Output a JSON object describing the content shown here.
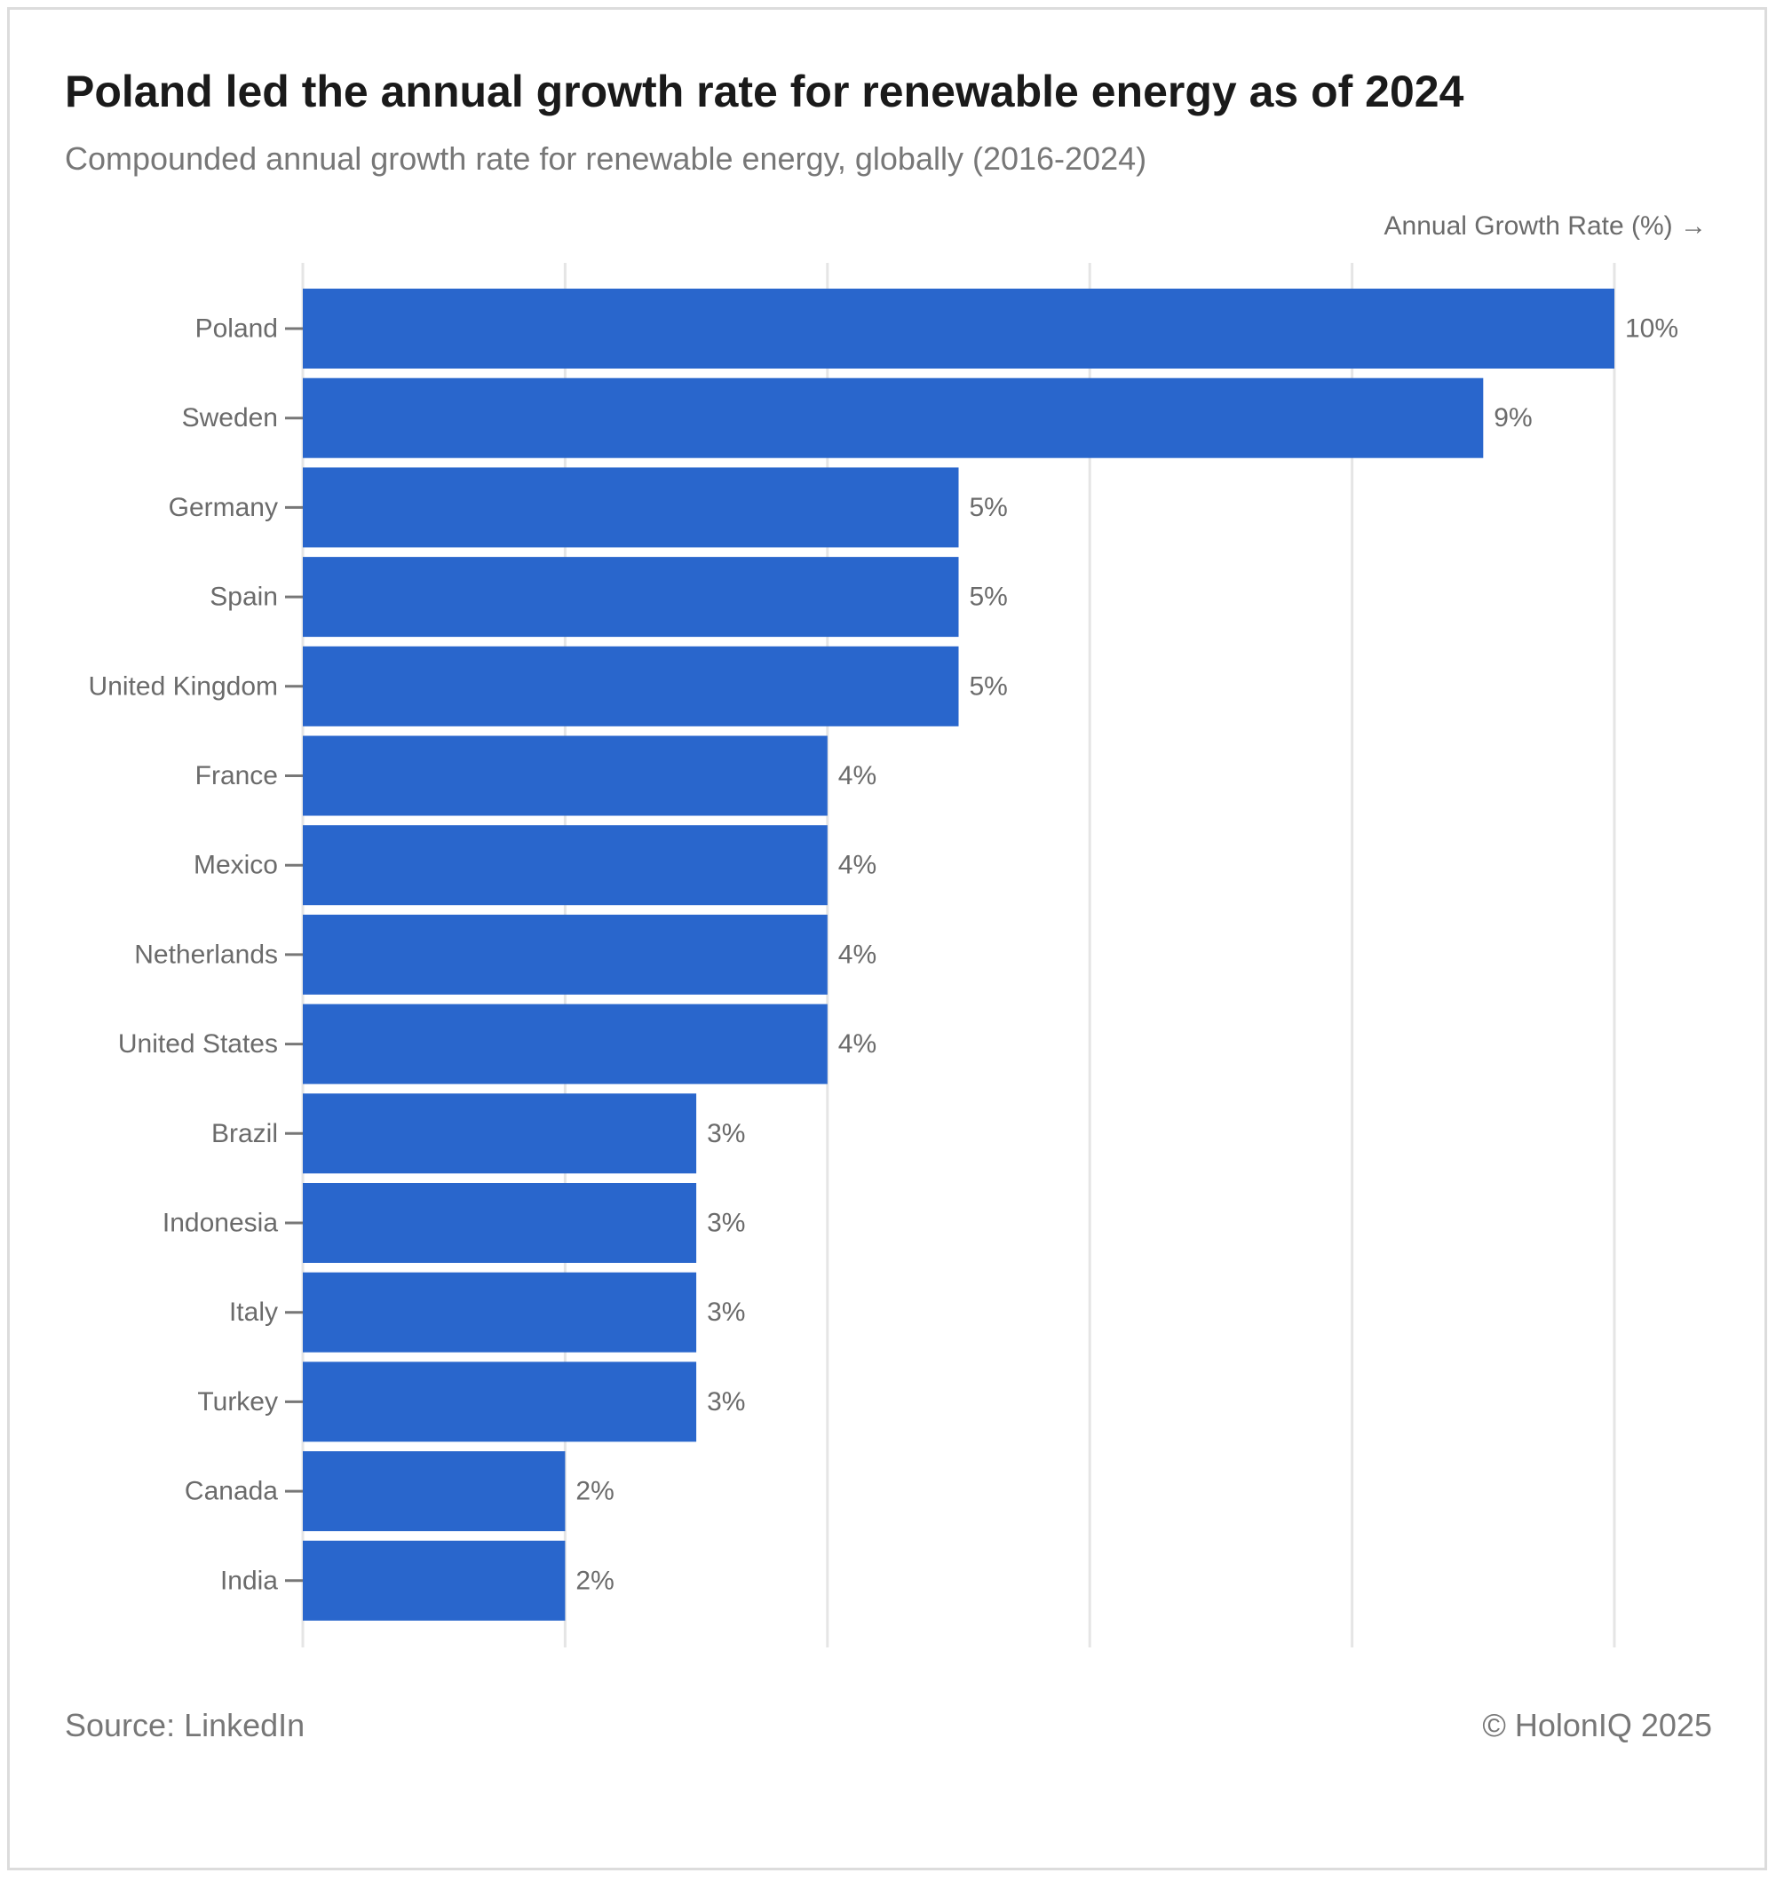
{
  "header": {
    "title": "Poland led the annual growth rate for renewable energy as of 2024",
    "subtitle": "Compounded annual growth rate for renewable energy, globally (2016-2024)"
  },
  "footer": {
    "source": "Source: LinkedIn",
    "copyright": "© HolonIQ 2025"
  },
  "chart_data": {
    "type": "bar",
    "orientation": "horizontal",
    "title": "Poland led the annual growth rate for renewable energy as of 2024",
    "subtitle": "Compounded annual growth rate for renewable energy, globally (2016-2024)",
    "xlabel": "Annual Growth Rate (%) →",
    "ylabel": "",
    "categories": [
      "Poland",
      "Sweden",
      "Germany",
      "Spain",
      "United Kingdom",
      "France",
      "Mexico",
      "Netherlands",
      "United States",
      "Brazil",
      "Indonesia",
      "Italy",
      "Turkey",
      "Canada",
      "India"
    ],
    "values": [
      10,
      9,
      5,
      5,
      5,
      4,
      4,
      4,
      4,
      3,
      3,
      3,
      3,
      2,
      2
    ],
    "value_labels": [
      "10%",
      "9%",
      "5%",
      "5%",
      "5%",
      "4%",
      "4%",
      "4%",
      "4%",
      "3%",
      "3%",
      "3%",
      "3%",
      "2%",
      "2%"
    ],
    "xlim": [
      0,
      10
    ],
    "grid": true,
    "legend": "none",
    "bar_color": "#2966cc",
    "grid_color": "#e5e5e5",
    "label_color": "#6b6b6b"
  }
}
